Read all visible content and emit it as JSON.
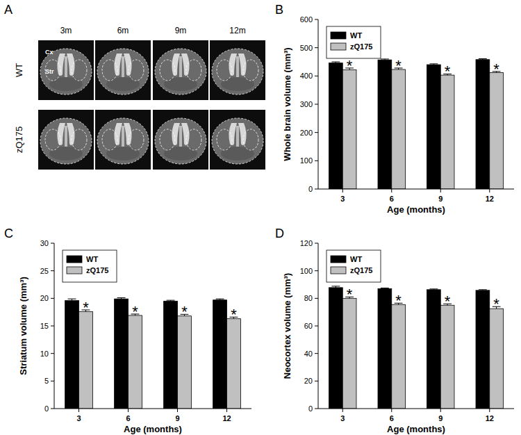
{
  "image_panel": {
    "panel_label": "A",
    "columns": [
      "3m",
      "6m",
      "9m",
      "12m"
    ],
    "rows": [
      "WT",
      "zQ175"
    ],
    "region_labels": [
      "Cx",
      "Str"
    ]
  },
  "chart_data": [
    {
      "type": "bar",
      "panel_label": "B",
      "x_label": "Age (months)",
      "y_label": "Whole brain volume (mm³)",
      "categories": [
        "3",
        "6",
        "9",
        "12"
      ],
      "series": [
        {
          "name": "WT",
          "color": "#000000",
          "values": [
            446,
            457,
            440,
            458
          ],
          "errors": [
            4,
            3,
            3,
            3
          ]
        },
        {
          "name": "zQ175",
          "color": "#c0c0c0",
          "values": [
            422,
            423,
            403,
            412
          ],
          "errors": [
            6,
            5,
            4,
            4
          ],
          "significance": [
            "*",
            "*",
            "*",
            "*"
          ]
        }
      ],
      "ylim": [
        0,
        600
      ],
      "yticks": [
        0,
        100,
        200,
        300,
        400,
        500,
        600
      ],
      "legend": "upper left"
    },
    {
      "type": "bar",
      "panel_label": "C",
      "x_label": "Age (months)",
      "y_label": "Striatum volume (mm³)",
      "categories": [
        "3",
        "6",
        "9",
        "12"
      ],
      "series": [
        {
          "name": "WT",
          "color": "#000000",
          "values": [
            19.6,
            19.9,
            19.5,
            19.7
          ],
          "errors": [
            0.3,
            0.2,
            0.15,
            0.2
          ]
        },
        {
          "name": "zQ175",
          "color": "#c0c0c0",
          "values": [
            17.6,
            16.9,
            16.8,
            16.3
          ],
          "errors": [
            0.3,
            0.25,
            0.3,
            0.3
          ],
          "significance": [
            "*",
            "*",
            "*",
            "*"
          ]
        }
      ],
      "ylim": [
        0,
        30
      ],
      "yticks": [
        0,
        5,
        10,
        15,
        20,
        25,
        30
      ],
      "legend": "upper left"
    },
    {
      "type": "bar",
      "panel_label": "D",
      "x_label": "Age (months)",
      "y_label": "Neocortex volume (mm³)",
      "categories": [
        "3",
        "6",
        "9",
        "12"
      ],
      "series": [
        {
          "name": "WT",
          "color": "#000000",
          "values": [
            87.8,
            87,
            86.3,
            85.8
          ],
          "errors": [
            1,
            0.5,
            0.5,
            0.5
          ]
        },
        {
          "name": "zQ175",
          "color": "#c0c0c0",
          "values": [
            80,
            75.5,
            75,
            72.5
          ],
          "errors": [
            1,
            1,
            1,
            1.5
          ],
          "significance": [
            "*",
            "*",
            "*",
            "*"
          ]
        }
      ],
      "ylim": [
        0,
        120
      ],
      "yticks": [
        0,
        20,
        40,
        60,
        80,
        100,
        120
      ],
      "legend": "upper left"
    }
  ]
}
